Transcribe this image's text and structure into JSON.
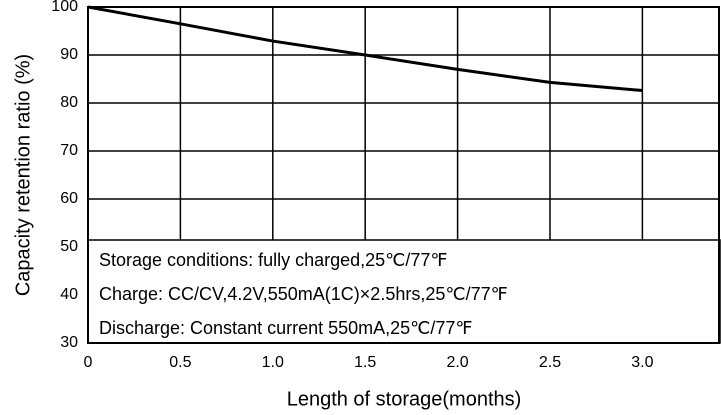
{
  "chart_data": {
    "type": "line",
    "x_label": "Length of storage(months)",
    "y_label": "Capacity retention ratio (%)",
    "annotations": [
      "Storage conditions: fully charged,25℃/77℉",
      "Charge: CC/CV,4.2V,550mA(1C)×2.5hrs,25℃/77℉",
      "Discharge: Constant current 550mA,25℃/77℉"
    ],
    "x": [
      0,
      0.5,
      1.0,
      1.5,
      2.0,
      2.5,
      3.0
    ],
    "series": [
      {
        "name": "Capacity retention",
        "color": "#000000",
        "values": [
          100,
          96.5,
          92.9,
          90,
          87,
          84.3,
          82.6
        ]
      }
    ],
    "xlim": [
      0,
      3.42
    ],
    "xticks": [
      0,
      0.5,
      {
        "value": 1,
        "label": "1.0"
      },
      1.5,
      {
        "value": 2,
        "label": "2.0"
      },
      2.5,
      {
        "value": 3,
        "label": "3.0"
      }
    ],
    "ylim": [
      30,
      100
    ],
    "yticks": [
      30,
      40,
      50,
      60,
      70,
      80,
      90,
      100
    ],
    "grid": true
  }
}
